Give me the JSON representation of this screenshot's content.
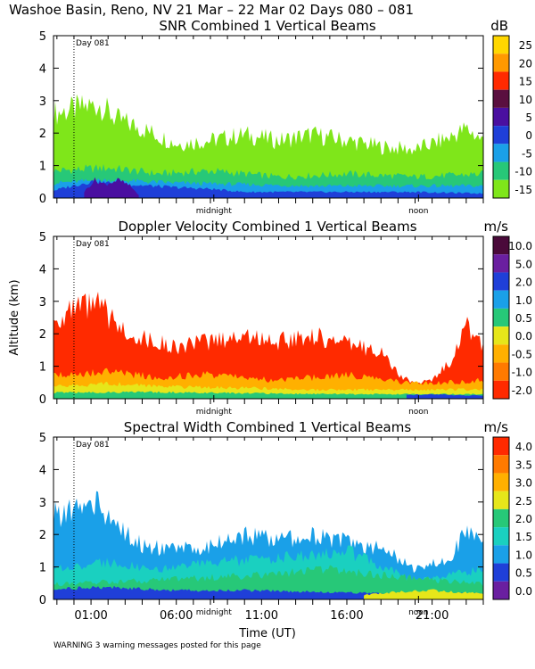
{
  "header": {
    "title": "Washoe Basin, Reno, NV  21 Mar – 22 Mar 02 Days 080 – 081",
    "warning": "WARNING  3 warning messages posted for this page"
  },
  "chart_data": [
    {
      "id": "snr",
      "type": "heatmap",
      "title": "SNR Combined 1 Vertical Beams",
      "units": "dB",
      "xlabel": "",
      "ylabel": "",
      "ylim": [
        0,
        5
      ],
      "yticks": [
        "0",
        "1",
        "2",
        "3",
        "4",
        "5"
      ],
      "day_label": "Day 081",
      "day_boundary_hours": 0,
      "annotations": [
        {
          "text": "midnight",
          "hours": 8.2
        },
        {
          "text": "noon",
          "hours": 20.2
        }
      ],
      "colorbar": {
        "labels": [
          "25",
          "20",
          "15",
          "10",
          "5",
          "0",
          "-5",
          "-10",
          "-15"
        ],
        "colors": [
          "#ffd700",
          "#ff9900",
          "#ff2a00",
          "#5a0f3f",
          "#4a0fa0",
          "#1f3fd8",
          "#1aa0e8",
          "#27c878",
          "#7fe61a"
        ]
      },
      "layers": [
        {
          "color": "#7fe61a",
          "hours": [
            -1.2,
            0.5,
            1.5,
            2.5,
            4,
            6,
            8,
            10,
            12,
            14,
            16,
            18,
            20,
            21,
            22,
            23,
            24
          ],
          "tops": [
            2.8,
            3.0,
            3.1,
            2.6,
            2.3,
            1.8,
            1.9,
            2.1,
            1.9,
            2.1,
            1.9,
            1.7,
            1.6,
            1.8,
            2.0,
            2.3,
            1.9
          ]
        },
        {
          "color": "#27c878",
          "hours": [
            -1.2,
            2,
            5,
            8,
            12,
            16,
            20,
            24
          ],
          "tops": [
            0.9,
            1.0,
            0.8,
            0.9,
            0.7,
            0.8,
            0.7,
            0.8
          ]
        },
        {
          "color": "#1aa0e8",
          "hours": [
            -1.2,
            2,
            6,
            10,
            14,
            18,
            24
          ],
          "tops": [
            0.5,
            0.6,
            0.5,
            0.45,
            0.4,
            0.4,
            0.4
          ]
        },
        {
          "color": "#1f3fd8",
          "hours": [
            -1.2,
            1,
            3,
            6,
            8,
            10,
            14,
            20,
            24
          ],
          "tops": [
            0.25,
            0.55,
            0.45,
            0.35,
            0.3,
            0.2,
            0.2,
            0.2,
            0.15
          ]
        },
        {
          "color": "#4a0fa0",
          "hours": [
            0.6,
            1.2,
            1.8,
            2.6,
            3.3,
            3.8
          ],
          "tops": [
            0.2,
            0.6,
            0.45,
            0.6,
            0.4,
            0.1
          ]
        }
      ]
    },
    {
      "id": "doppler",
      "type": "heatmap",
      "title": "Doppler Velocity Combined 1 Vertical Beams",
      "units": "m/s",
      "xlabel": "",
      "ylabel": "Altitude (km)",
      "ylim": [
        0,
        5
      ],
      "yticks": [
        "0",
        "1",
        "2",
        "3",
        "4",
        "5"
      ],
      "day_label": "Day 081",
      "day_boundary_hours": 0,
      "annotations": [
        {
          "text": "midnight",
          "hours": 8.2
        },
        {
          "text": "noon",
          "hours": 20.2
        }
      ],
      "colorbar": {
        "labels": [
          "10.0",
          "5.0",
          "2.0",
          "1.0",
          "0.5",
          "0.0",
          "-0.5",
          "-1.0",
          "-2.0"
        ],
        "colors": [
          "#4a0a3a",
          "#6a1fa0",
          "#1f3fd8",
          "#1aa0e8",
          "#27c878",
          "#e6e61a",
          "#ffb000",
          "#ff7a00",
          "#ff2a00"
        ]
      },
      "layers": [
        {
          "color": "#ff2a00",
          "hours": [
            -1.2,
            0.5,
            1.5,
            2.5,
            4,
            6,
            8,
            10,
            12,
            14,
            16,
            18,
            19,
            20,
            21,
            22,
            23,
            24
          ],
          "tops": [
            2.6,
            3.0,
            3.1,
            2.4,
            2.0,
            1.7,
            1.9,
            2.1,
            1.9,
            2.1,
            1.8,
            1.6,
            0.8,
            0.5,
            0.6,
            1.2,
            2.4,
            1.8
          ]
        },
        {
          "color": "#ffb000",
          "hours": [
            -1.2,
            2,
            5,
            8,
            12,
            16,
            20,
            24
          ],
          "tops": [
            0.8,
            0.9,
            0.7,
            0.8,
            0.6,
            0.8,
            0.5,
            0.6
          ]
        },
        {
          "color": "#e6e61a",
          "hours": [
            -1.2,
            2,
            6,
            10,
            14,
            18,
            24
          ],
          "tops": [
            0.4,
            0.5,
            0.4,
            0.35,
            0.3,
            0.3,
            0.3
          ]
        },
        {
          "color": "#27c878",
          "hours": [
            -1.2,
            4,
            10,
            16,
            24
          ],
          "tops": [
            0.2,
            0.22,
            0.18,
            0.15,
            0.15
          ]
        },
        {
          "color": "#1f3fd8",
          "hours": [
            19.5,
            21,
            22.5,
            24
          ],
          "tops": [
            0.12,
            0.15,
            0.12,
            0.1
          ]
        }
      ]
    },
    {
      "id": "width",
      "type": "heatmap",
      "title": "Spectral Width Combined 1 Vertical Beams",
      "units": "m/s",
      "xlabel": "Time (UT)",
      "ylabel": "",
      "ylim": [
        0,
        5
      ],
      "yticks": [
        "0",
        "1",
        "2",
        "3",
        "4",
        "5"
      ],
      "xticks": [
        "01:00",
        "06:00",
        "11:00",
        "16:00",
        "21:00"
      ],
      "xtick_hours": [
        1,
        6,
        11,
        16,
        21
      ],
      "day_label": "Day 081",
      "day_boundary_hours": 0,
      "annotations": [
        {
          "text": "midnight",
          "hours": 8.2
        },
        {
          "text": "noon",
          "hours": 20.2
        }
      ],
      "colorbar": {
        "labels": [
          "4.0",
          "3.5",
          "3.0",
          "2.5",
          "2.0",
          "1.5",
          "1.0",
          "0.5",
          "0.0"
        ],
        "colors": [
          "#ff2a00",
          "#ff7a00",
          "#ffb000",
          "#e6e61a",
          "#27c878",
          "#1ad0c0",
          "#1aa0e8",
          "#1f3fd8",
          "#6a1fa0"
        ]
      },
      "layers": [
        {
          "color": "#1aa0e8",
          "hours": [
            -1.2,
            0.5,
            1.5,
            2.5,
            4,
            6,
            8,
            10,
            12,
            14,
            16,
            18,
            20,
            21,
            22,
            23,
            24
          ],
          "tops": [
            2.8,
            3.0,
            3.2,
            2.4,
            1.8,
            1.6,
            1.8,
            2.1,
            2.0,
            2.1,
            1.9,
            1.7,
            1.0,
            1.2,
            1.4,
            2.2,
            1.8
          ]
        },
        {
          "color": "#1ad0c0",
          "hours": [
            -1.2,
            2,
            5,
            8,
            12,
            16,
            20,
            24
          ],
          "tops": [
            1.0,
            1.2,
            1.0,
            1.2,
            1.4,
            1.6,
            0.6,
            1.0
          ]
        },
        {
          "color": "#27c878",
          "hours": [
            -1.2,
            3,
            7,
            11,
            15,
            18,
            24
          ],
          "tops": [
            0.5,
            0.6,
            0.7,
            0.8,
            1.0,
            0.8,
            0.5
          ]
        },
        {
          "color": "#1f3fd8",
          "hours": [
            -1.2,
            2,
            6,
            10,
            14,
            18,
            24
          ],
          "tops": [
            0.35,
            0.4,
            0.3,
            0.3,
            0.25,
            0.2,
            0.2
          ]
        },
        {
          "color": "#e6e61a",
          "hours": [
            17,
            19,
            21,
            22,
            24
          ],
          "tops": [
            0.15,
            0.25,
            0.3,
            0.25,
            0.2
          ]
        }
      ]
    }
  ]
}
